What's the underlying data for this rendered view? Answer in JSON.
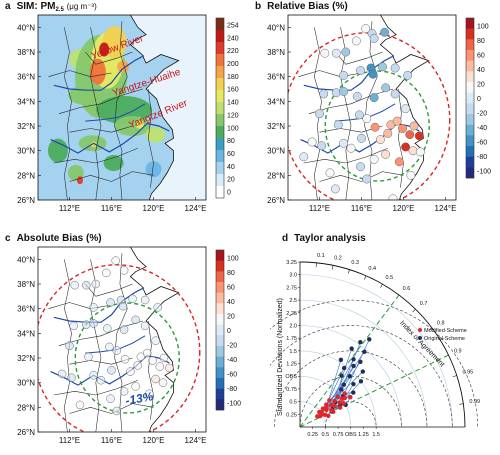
{
  "panels": {
    "a": {
      "label": "a",
      "title_prefix": "SIM: PM",
      "title_sub": "2.5",
      "title_unit": "(μg m⁻³)"
    },
    "b": {
      "label": "b",
      "title": "Relative Bias (%)"
    },
    "c": {
      "label": "c",
      "title": "Absolute Bias (%)"
    },
    "d": {
      "label": "d",
      "title": "Taylor analysis"
    }
  },
  "map_axes": {
    "lat_ticks": [
      "40°N",
      "38°N",
      "36°N",
      "34°N",
      "32°N",
      "30°N",
      "28°N",
      "26°N"
    ],
    "lon_ticks": [
      "112°E",
      "116°E",
      "120°E",
      "124°E"
    ]
  },
  "region_labels": [
    "Yellow River",
    "Yangtze-Huaihe",
    "Yangtze River"
  ],
  "annotation_c": "-13%",
  "colorbars": {
    "a": {
      "ticks": [
        "254",
        "240",
        "220",
        "200",
        "180",
        "160",
        "140",
        "120",
        "100",
        "80",
        "60",
        "40",
        "20",
        "0"
      ],
      "colors": [
        "#7a2d14",
        "#c2181a",
        "#e23a2a",
        "#f0733c",
        "#f5a34a",
        "#f3d04f",
        "#e6ea62",
        "#bfe070",
        "#86c86a",
        "#4dad5d",
        "#3a9ec2",
        "#6bb5e3",
        "#a4d2ef",
        "#d7ebf8",
        "#ffffff"
      ]
    },
    "bc": {
      "ticks": [
        "100",
        "80",
        "60",
        "40",
        "20",
        "0",
        "-20",
        "-40",
        "-60",
        "-80",
        "-100"
      ],
      "colors": [
        "#a5141f",
        "#d7301f",
        "#ef6548",
        "#fc9272",
        "#fcbba1",
        "#fee0d2",
        "#f7f7f7",
        "#deebf7",
        "#c6dbef",
        "#9ecae1",
        "#6baed6",
        "#4292c6",
        "#2171b5",
        "#1c3f9a",
        "#252a7a"
      ]
    }
  },
  "chart_data": [
    {
      "type": "heatmap",
      "panel": "a",
      "title": "SIM: PM2.5 (μg m⁻³)",
      "xlabel": "",
      "ylabel": "",
      "xlim": [
        109,
        125
      ],
      "ylim": [
        26,
        41
      ],
      "colorbar_range": [
        0,
        254
      ]
    },
    {
      "type": "scatter",
      "panel": "b",
      "title": "Relative Bias (%)",
      "xlim": [
        109,
        125
      ],
      "ylim": [
        26,
        41
      ],
      "colorbar_range": [
        -100,
        100
      ],
      "points": [
        [
          117.0,
          39.5,
          -10
        ],
        [
          116.4,
          39.9,
          20
        ],
        [
          114.5,
          38.0,
          -30
        ],
        [
          115.5,
          38.9,
          10
        ],
        [
          113.6,
          37.9,
          -5
        ],
        [
          112.5,
          37.9,
          10
        ],
        [
          117.2,
          39.1,
          -20
        ],
        [
          118.2,
          39.6,
          -40
        ],
        [
          116.9,
          36.7,
          -50
        ],
        [
          118.0,
          36.8,
          -30
        ],
        [
          119.2,
          36.7,
          -20
        ],
        [
          120.4,
          36.1,
          -10
        ],
        [
          117.1,
          36.2,
          -60
        ],
        [
          115.9,
          36.5,
          -20
        ],
        [
          114.3,
          36.1,
          -10
        ],
        [
          113.6,
          34.7,
          -20
        ],
        [
          112.4,
          34.6,
          -15
        ],
        [
          114.3,
          34.8,
          -30
        ],
        [
          115.6,
          34.4,
          -20
        ],
        [
          117.2,
          34.3,
          -40
        ],
        [
          118.3,
          35.1,
          -30
        ],
        [
          119.2,
          34.6,
          -10
        ],
        [
          120.2,
          33.4,
          -5
        ],
        [
          118.8,
          32.1,
          40
        ],
        [
          117.3,
          31.9,
          60
        ],
        [
          116.5,
          32.6,
          20
        ],
        [
          115.8,
          32.9,
          -10
        ],
        [
          114.3,
          30.6,
          5
        ],
        [
          112.2,
          30.4,
          -20
        ],
        [
          111.3,
          30.7,
          10
        ],
        [
          113.0,
          28.2,
          20
        ],
        [
          115.9,
          28.7,
          -10
        ],
        [
          117.2,
          29.3,
          15
        ],
        [
          118.3,
          29.7,
          30
        ],
        [
          119.6,
          29.1,
          60
        ],
        [
          120.2,
          30.3,
          80
        ],
        [
          121.5,
          31.2,
          90
        ],
        [
          120.6,
          31.3,
          70
        ],
        [
          119.9,
          31.8,
          60
        ],
        [
          119.4,
          32.4,
          40
        ],
        [
          121.0,
          32.0,
          50
        ],
        [
          120.9,
          30.0,
          30
        ],
        [
          119.0,
          26.1,
          10
        ],
        [
          116.5,
          27.7,
          -10
        ],
        [
          113.5,
          26.9,
          0
        ],
        [
          121.6,
          29.9,
          20
        ],
        [
          120.7,
          28.0,
          10
        ],
        [
          112.0,
          33.0,
          -20
        ],
        [
          113.8,
          32.1,
          -10
        ],
        [
          110.5,
          29.5,
          0
        ],
        [
          110.3,
          25.3,
          5
        ],
        [
          118.5,
          31.4,
          50
        ],
        [
          117.8,
          30.9,
          30
        ],
        [
          115.0,
          30.2,
          10
        ],
        [
          116.0,
          31.0,
          -20
        ]
      ]
    },
    {
      "type": "scatter",
      "panel": "c",
      "title": "Absolute Bias (%)",
      "xlim": [
        109,
        125
      ],
      "ylim": [
        26,
        41
      ],
      "colorbar_range": [
        -100,
        100
      ],
      "points": [
        [
          116.4,
          39.9,
          10
        ],
        [
          117.2,
          39.1,
          15
        ],
        [
          115.5,
          38.9,
          10
        ],
        [
          114.5,
          38.0,
          -5
        ],
        [
          113.6,
          37.9,
          -10
        ],
        [
          112.5,
          37.9,
          5
        ],
        [
          116.9,
          36.7,
          -10
        ],
        [
          118.0,
          36.8,
          -5
        ],
        [
          119.2,
          36.7,
          5
        ],
        [
          120.4,
          36.1,
          0
        ],
        [
          117.1,
          36.2,
          -15
        ],
        [
          115.9,
          36.5,
          -10
        ],
        [
          114.3,
          36.1,
          -5
        ],
        [
          113.6,
          34.7,
          -10
        ],
        [
          112.4,
          34.6,
          -5
        ],
        [
          114.3,
          34.8,
          -15
        ],
        [
          115.6,
          34.4,
          -5
        ],
        [
          117.2,
          34.3,
          -20
        ],
        [
          118.3,
          35.1,
          -10
        ],
        [
          119.2,
          34.6,
          -5
        ],
        [
          120.2,
          33.4,
          0
        ],
        [
          118.8,
          32.1,
          10
        ],
        [
          117.3,
          31.9,
          20
        ],
        [
          116.5,
          32.6,
          5
        ],
        [
          115.8,
          32.9,
          -5
        ],
        [
          114.3,
          30.6,
          5
        ],
        [
          112.2,
          30.4,
          -10
        ],
        [
          111.3,
          30.7,
          5
        ],
        [
          113.0,
          28.2,
          10
        ],
        [
          115.9,
          28.7,
          -5
        ],
        [
          117.2,
          29.3,
          5
        ],
        [
          118.3,
          29.7,
          10
        ],
        [
          119.6,
          29.1,
          20
        ],
        [
          120.2,
          30.3,
          25
        ],
        [
          121.5,
          31.2,
          30
        ],
        [
          120.6,
          31.3,
          20
        ],
        [
          119.9,
          31.8,
          15
        ],
        [
          119.4,
          32.4,
          10
        ],
        [
          121.0,
          32.0,
          15
        ],
        [
          120.9,
          30.0,
          10
        ],
        [
          116.5,
          27.7,
          -5
        ],
        [
          112.0,
          33.0,
          -10
        ],
        [
          113.8,
          32.1,
          -5
        ],
        [
          118.5,
          31.4,
          15
        ],
        [
          117.8,
          30.9,
          10
        ],
        [
          115.0,
          30.2,
          5
        ],
        [
          116.0,
          31.0,
          -10
        ]
      ]
    },
    {
      "type": "scatter",
      "panel": "d",
      "title": "Taylor analysis",
      "ylabel": "Standardized Deviations (Normalized)",
      "arc_label": "Index of Agreement",
      "std_ticks": [
        "0.25",
        "0.5",
        "0.75",
        "OBS",
        "1.25",
        "1.5",
        "1.75",
        "2.0",
        "2.25",
        "2.5",
        "2.75",
        "3.0",
        "3.25"
      ],
      "corr_ticks": [
        "0.1",
        "0.2",
        "0.3",
        "0.4",
        "0.5",
        "0.6",
        "0.7",
        "0.8",
        "0.9",
        "0.95",
        "0.99"
      ],
      "series": [
        {
          "name": "Modified-Scheme",
          "color": "#e0262a",
          "points": [
            [
              0.5,
              0.86
            ],
            [
              0.62,
              0.84
            ],
            [
              0.7,
              0.88
            ],
            [
              0.55,
              0.9
            ],
            [
              0.8,
              0.86
            ],
            [
              0.92,
              0.85
            ],
            [
              0.45,
              0.88
            ],
            [
              0.65,
              0.8
            ],
            [
              0.75,
              0.82
            ],
            [
              0.58,
              0.78
            ],
            [
              0.85,
              0.8
            ],
            [
              1.0,
              0.83
            ],
            [
              0.68,
              0.76
            ],
            [
              0.4,
              0.85
            ],
            [
              0.95,
              0.78
            ],
            [
              1.05,
              0.84
            ],
            [
              0.52,
              0.82
            ],
            [
              0.72,
              0.91
            ],
            [
              0.88,
              0.9
            ],
            [
              0.6,
              0.93
            ],
            [
              1.1,
              0.8
            ],
            [
              0.48,
              0.79
            ],
            [
              0.78,
              0.74
            ],
            [
              0.98,
              0.88
            ],
            [
              1.15,
              0.86
            ]
          ]
        },
        {
          "name": "Original-Scheme",
          "color": "#1c2e5c",
          "points": [
            [
              1.45,
              0.6
            ],
            [
              1.7,
              0.62
            ],
            [
              1.85,
              0.55
            ],
            [
              1.6,
              0.66
            ],
            [
              2.05,
              0.58
            ],
            [
              1.3,
              0.63
            ],
            [
              1.95,
              0.65
            ],
            [
              1.55,
              0.52
            ],
            [
              1.75,
              0.68
            ],
            [
              1.4,
              0.7
            ],
            [
              1.2,
              0.72
            ],
            [
              2.2,
              0.62
            ],
            [
              1.1,
              0.74
            ],
            [
              1.65,
              0.75
            ],
            [
              0.95,
              0.78
            ],
            [
              1.35,
              0.78
            ],
            [
              0.85,
              0.82
            ],
            [
              1.5,
              0.8
            ],
            [
              1.05,
              0.81
            ],
            [
              0.75,
              0.86
            ],
            [
              1.25,
              0.84
            ],
            [
              0.9,
              0.88
            ],
            [
              1.15,
              0.86
            ],
            [
              0.7,
              0.9
            ],
            [
              1.0,
              0.9
            ]
          ]
        }
      ]
    }
  ]
}
